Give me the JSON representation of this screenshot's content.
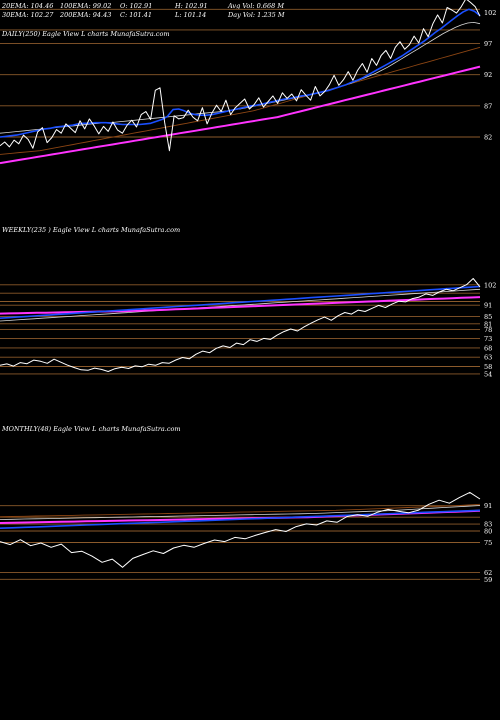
{
  "header": {
    "row1": [
      "20EMA: 104.46",
      "100EMA: 99.02",
      "O: 102.91",
      "H: 102.91",
      "Avg Vol: 0.668 M"
    ],
    "row2": [
      "30EMA: 102.27",
      "200EMA: 94.43",
      "C: 101.41",
      "L: 101.14",
      "Day Vol: 1.235 M"
    ]
  },
  "colors": {
    "background": "#000000",
    "price": "#ffffff",
    "ema_fast": "#1a4fff",
    "ema_slow": "#ff33ff",
    "ema_mid": "#d8d8d8",
    "ema_brown": "#8b4513",
    "level_line": "#8b5a2b"
  },
  "chart_data": [
    {
      "type": "line",
      "name": "daily",
      "label": "DAILY(250) Eagle  View  L  charts MunafaSutra.com",
      "yticks": [
        "102",
        "97",
        "92",
        "87",
        "82"
      ],
      "levels": [
        102.5,
        99.2,
        97,
        92,
        87,
        82
      ],
      "ylim": [
        77.5,
        104
      ],
      "series": [
        {
          "role": "price",
          "values": [
            80.6,
            81.2,
            80.4,
            81.5,
            80.9,
            82.3,
            81.6,
            80.2,
            82.8,
            83.5,
            81.1,
            81.9,
            83.2,
            82.6,
            84.1,
            83.4,
            82.7,
            84.6,
            83.3,
            84.9,
            83.8,
            82.5,
            83.7,
            82.9,
            84.4,
            83.1,
            82.6,
            83.9,
            84.7,
            83.6,
            85.6,
            86.1,
            84.8,
            89.5,
            89.9,
            84.3,
            79.8,
            85.4,
            84.9,
            85.1,
            86.3,
            85.2,
            84.6,
            86.7,
            84.1,
            85.8,
            87.1,
            86.1,
            87.9,
            85.6,
            86.7,
            87.4,
            88.1,
            86.5,
            87.2,
            88.3,
            86.8,
            87.7,
            88.6,
            87.4,
            89.1,
            88.2,
            88.9,
            87.8,
            89.6,
            88.7,
            87.9,
            90.1,
            88.6,
            89.3,
            90.4,
            91.9,
            90.3,
            91.2,
            92.5,
            91.1,
            92.7,
            93.8,
            92.4,
            94.6,
            93.5,
            95.1,
            95.9,
            94.6,
            96.4,
            97.3,
            96.1,
            96.8,
            98.2,
            97.1,
            99.4,
            98.1,
            100.2,
            101.6,
            100.3,
            102.8,
            102.4,
            101.9,
            102.9,
            104.2,
            103.6,
            102.9,
            101.4
          ]
        },
        {
          "role": "ema_fast",
          "values": [
            82.0,
            82.1,
            82.2,
            82.3,
            82.5,
            82.7,
            82.9,
            83.1,
            83.3,
            83.4,
            83.6,
            83.7,
            83.8,
            83.9,
            84.1,
            84.2,
            84.2,
            84.3,
            84.3,
            84.3,
            84.2,
            84.1,
            84.0,
            84.0,
            84.0,
            84.0,
            84.1,
            84.2,
            84.5,
            84.8,
            85.3,
            86.4,
            86.5,
            86.2,
            85.8,
            85.6,
            85.5,
            85.5,
            85.6,
            85.8,
            86.0,
            86.2,
            86.4,
            86.6,
            86.8,
            87.0,
            87.1,
            87.3,
            87.5,
            87.7,
            87.9,
            88.1,
            88.2,
            88.4,
            88.6,
            88.7,
            88.9,
            89.1,
            89.3,
            89.5,
            89.8,
            90.1,
            90.4,
            90.8,
            91.1,
            91.5,
            92.0,
            92.5,
            93.0,
            93.5,
            94.0,
            94.5,
            95.0,
            95.6,
            96.2,
            96.8,
            97.4,
            98.1,
            98.8,
            99.4,
            100.1,
            100.8,
            101.5,
            102.1,
            102.5,
            102.2,
            101.5
          ]
        },
        {
          "role": "ema_mid",
          "values": [
            82.6,
            82.7,
            82.8,
            82.9,
            83.0,
            83.1,
            83.2,
            83.3,
            83.4,
            83.5,
            83.6,
            83.7,
            83.8,
            83.9,
            84.0,
            84.1,
            84.2,
            84.3,
            84.3,
            84.4,
            84.5,
            84.6,
            84.7,
            84.8,
            84.9,
            85.0,
            85.1,
            85.2,
            85.3,
            85.4,
            85.5,
            85.6,
            85.7,
            85.8,
            85.9,
            86.0,
            86.1,
            86.2,
            86.4,
            86.5,
            86.7,
            86.9,
            87.1,
            87.3,
            87.5,
            87.7,
            87.9,
            88.1,
            88.3,
            88.5,
            88.7,
            88.9,
            89.1,
            89.4,
            89.7,
            90.0,
            90.3,
            90.6,
            91.0,
            91.4,
            91.8,
            92.2,
            92.7,
            93.2,
            93.8,
            94.4,
            95.0,
            95.6,
            96.2,
            96.8,
            97.4,
            98.0,
            98.6,
            99.1,
            99.6,
            100.0,
            100.3,
            100.4,
            100.2
          ]
        },
        {
          "role": "ema_brown",
          "values": [
            79.2,
            79.3,
            79.4,
            79.5,
            79.6,
            79.7,
            79.8,
            80.0,
            80.2,
            80.4,
            80.6,
            80.8,
            81.0,
            81.2,
            81.4,
            81.6,
            81.8,
            82.0,
            82.2,
            82.4,
            82.6,
            82.8,
            83.0,
            83.2,
            83.4,
            83.6,
            83.8,
            84.0,
            84.2,
            84.4,
            84.6,
            84.8,
            85.0,
            85.2,
            85.4,
            85.6,
            85.8,
            86.0,
            86.2,
            86.5,
            86.8,
            87.1,
            87.4,
            87.7,
            88.0,
            88.3,
            88.6,
            88.9,
            89.2,
            89.5,
            89.8,
            90.1,
            90.4,
            90.7,
            91.0,
            91.3,
            91.6,
            91.9,
            92.2,
            92.5,
            92.8,
            93.1,
            93.4,
            93.7,
            94.0,
            94.3,
            94.6,
            94.9,
            95.2,
            95.5,
            95.8,
            96.1,
            96.4
          ]
        },
        {
          "role": "ema_slow",
          "values": [
            77.8,
            78.0,
            78.2,
            78.4,
            78.6,
            78.8,
            79.0,
            79.2,
            79.4,
            79.6,
            79.8,
            80.0,
            80.2,
            80.4,
            80.6,
            80.8,
            81.0,
            81.2,
            81.4,
            81.6,
            81.8,
            82.0,
            82.2,
            82.4,
            82.6,
            82.8,
            83.0,
            83.2,
            83.4,
            83.6,
            83.8,
            84.0,
            84.2,
            84.4,
            84.6,
            84.8,
            85.0,
            85.2,
            85.5,
            85.8,
            86.1,
            86.4,
            86.7,
            87.0,
            87.3,
            87.6,
            87.9,
            88.2,
            88.5,
            88.8,
            89.1,
            89.4,
            89.7,
            90.0,
            90.3,
            90.6,
            90.9,
            91.2,
            91.5,
            91.8,
            92.1,
            92.4,
            92.7,
            93.0,
            93.3
          ]
        }
      ]
    },
    {
      "type": "line",
      "name": "weekly",
      "label": "WEEKLY(235                ) Eagle   View  L  charts MunafaSutra.com",
      "yticks": [
        "102",
        "91",
        "85",
        "81",
        "78",
        "73",
        "68",
        "63",
        "58",
        "54"
      ],
      "levels": [
        102,
        97.5,
        93,
        91,
        85,
        81,
        78,
        73,
        68,
        63,
        58,
        54
      ],
      "ylim": [
        48,
        110
      ],
      "series": [
        {
          "role": "price",
          "values": [
            58.6,
            59.4,
            58.2,
            60.1,
            59.5,
            61.4,
            60.8,
            59.7,
            61.9,
            60.3,
            58.7,
            57.4,
            56.2,
            55.9,
            57.1,
            56.4,
            55.3,
            56.8,
            57.6,
            56.9,
            58.3,
            57.8,
            59.2,
            58.6,
            60.1,
            59.7,
            61.5,
            62.8,
            62.1,
            64.6,
            66.3,
            65.4,
            67.8,
            69.1,
            68.2,
            70.6,
            69.8,
            72.4,
            71.5,
            73.1,
            72.6,
            74.9,
            76.8,
            78.2,
            77.1,
            79.4,
            81.3,
            83.1,
            84.6,
            82.9,
            85.3,
            87.1,
            86.2,
            88.4,
            87.6,
            89.3,
            90.9,
            89.8,
            91.6,
            93.2,
            92.8,
            94.6,
            95.4,
            97.1,
            96.3,
            98.2,
            99.6,
            98.8,
            100.4,
            102.1,
            105.4,
            100.9
          ]
        },
        {
          "role": "ema_fast",
          "values": [
            84.0,
            84.3,
            84.6,
            84.9,
            85.2,
            85.5,
            85.8,
            86.1,
            86.4,
            86.7,
            87.0,
            87.3,
            87.6,
            87.9,
            88.2,
            88.5,
            88.8,
            89.1,
            89.4,
            89.7,
            90.0,
            90.3,
            90.6,
            90.9,
            91.2,
            91.5,
            91.8,
            92.1,
            92.4,
            92.7,
            93.0,
            93.3,
            93.6,
            93.9,
            94.2,
            94.5,
            94.8,
            95.1,
            95.4,
            95.7,
            96.0,
            96.3,
            96.6,
            96.9,
            97.2,
            97.5,
            97.8,
            98.1,
            98.4,
            98.7,
            99.0,
            99.3,
            99.6,
            99.9,
            100.2,
            100.5,
            100.8,
            101.1
          ]
        },
        {
          "role": "ema_slow",
          "values": [
            86.5,
            86.6,
            86.7,
            86.8,
            86.9,
            87.0,
            87.1,
            87.2,
            87.3,
            87.4,
            87.5,
            87.6,
            87.7,
            87.8,
            87.9,
            88.0,
            88.2,
            88.4,
            88.6,
            88.8,
            89.0,
            89.2,
            89.4,
            89.6,
            89.8,
            90.0,
            90.2,
            90.4,
            90.6,
            90.8,
            91.0,
            91.2,
            91.4,
            91.6,
            91.8,
            92.0,
            92.2,
            92.4,
            92.6,
            92.8,
            93.0,
            93.2,
            93.4,
            93.6,
            93.8,
            94.0,
            94.2,
            94.4,
            94.6,
            94.8,
            95.0,
            95.2,
            95.4
          ]
        },
        {
          "role": "ema_mid",
          "values": [
            82.5,
            82.8,
            83.1,
            83.4,
            83.7,
            84.0,
            84.3,
            84.6,
            84.9,
            85.2,
            85.5,
            85.8,
            86.1,
            86.4,
            86.7,
            87.0,
            87.3,
            87.6,
            87.9,
            88.2,
            88.5,
            88.8,
            89.1,
            89.4,
            89.7,
            90.0,
            90.3,
            90.6,
            90.9,
            91.2,
            91.5,
            91.8,
            92.1,
            92.4,
            92.7,
            93.0,
            93.3,
            93.6,
            93.9,
            94.2,
            94.5,
            94.8,
            95.1,
            95.4,
            95.7,
            96.0,
            96.3,
            96.6,
            96.9,
            97.2,
            97.5,
            97.8,
            98.1,
            98.4,
            98.7,
            99.0,
            99.3,
            99.6
          ]
        }
      ]
    },
    {
      "type": "line",
      "name": "monthly",
      "label": "MONTHLY(48) Eagle   View  L  charts MunafaSutra.com",
      "yticks": [
        "91",
        "83",
        "80",
        "75",
        "62",
        "59"
      ],
      "levels": [
        91,
        86,
        83,
        80,
        75,
        62,
        59
      ],
      "ylim": [
        50,
        100
      ],
      "series": [
        {
          "role": "price",
          "values": [
            75.4,
            74.1,
            76.2,
            73.6,
            74.8,
            72.9,
            74.3,
            70.6,
            71.2,
            69.1,
            66.4,
            67.8,
            64.2,
            68.1,
            69.8,
            71.4,
            70.2,
            72.6,
            73.8,
            72.9,
            74.6,
            76.1,
            75.4,
            77.2,
            76.6,
            78.1,
            79.4,
            80.6,
            79.8,
            81.9,
            83.1,
            82.6,
            84.4,
            83.8,
            86.3,
            87.1,
            86.4,
            88.2,
            89.4,
            88.6,
            87.9,
            89.1,
            91.6,
            93.4,
            92.1,
            94.6,
            96.8,
            93.9
          ]
        },
        {
          "role": "ema_fast",
          "values": [
            81.2,
            81.4,
            81.6,
            81.8,
            82.0,
            82.2,
            82.4,
            82.6,
            82.8,
            83.0,
            83.2,
            83.4,
            83.6,
            83.8,
            84.0,
            84.2,
            84.4,
            84.6,
            84.8,
            85.0,
            85.2,
            85.4,
            85.6,
            85.8,
            86.0,
            86.2,
            86.4,
            86.6,
            86.8,
            87.0,
            87.2,
            87.4,
            87.6,
            87.8,
            88.0,
            88.2,
            88.4,
            88.6,
            88.8,
            89.0
          ]
        },
        {
          "role": "ema_slow",
          "values": [
            83.5,
            83.6,
            83.7,
            83.8,
            83.9,
            84.0,
            84.1,
            84.2,
            84.3,
            84.4,
            84.5,
            84.6,
            84.7,
            84.8,
            84.9,
            85.0,
            85.1,
            85.2,
            85.3,
            85.4,
            85.5,
            85.6,
            85.7,
            85.8,
            85.9,
            86.0,
            86.2,
            86.4,
            86.6,
            86.8,
            87.0,
            87.2,
            87.4,
            87.6,
            87.8,
            88.0,
            88.2,
            88.4,
            88.6,
            88.8
          ]
        },
        {
          "role": "ema_mid",
          "values": [
            85.0,
            85.1,
            85.2,
            85.3,
            85.4,
            85.5,
            85.6,
            85.7,
            85.8,
            85.9,
            86.0,
            86.1,
            86.2,
            86.3,
            86.4,
            86.5,
            86.6,
            86.7,
            86.8,
            86.9,
            87.0,
            87.1,
            87.2,
            87.3,
            87.4,
            87.5,
            87.6,
            87.8,
            88.0,
            88.2,
            88.4,
            88.6,
            88.8,
            89.0,
            89.3,
            89.6,
            89.9,
            90.2,
            90.5,
            90.8,
            91.1
          ]
        },
        {
          "role": "ema_brown",
          "values": [
            86.2,
            86.3,
            86.4,
            86.5,
            86.6,
            86.7,
            86.8,
            86.9,
            87.0,
            87.1,
            87.2,
            87.3,
            87.4,
            87.5,
            87.6,
            87.7,
            87.8,
            87.9,
            88.0,
            88.1,
            88.2,
            88.3,
            88.4,
            88.5,
            88.6,
            88.7,
            88.8,
            88.9,
            89.0,
            89.2,
            89.4,
            89.6,
            89.8,
            90.0,
            90.2,
            90.4,
            90.6,
            90.8,
            91.0,
            91.3,
            91.6
          ]
        }
      ]
    }
  ]
}
